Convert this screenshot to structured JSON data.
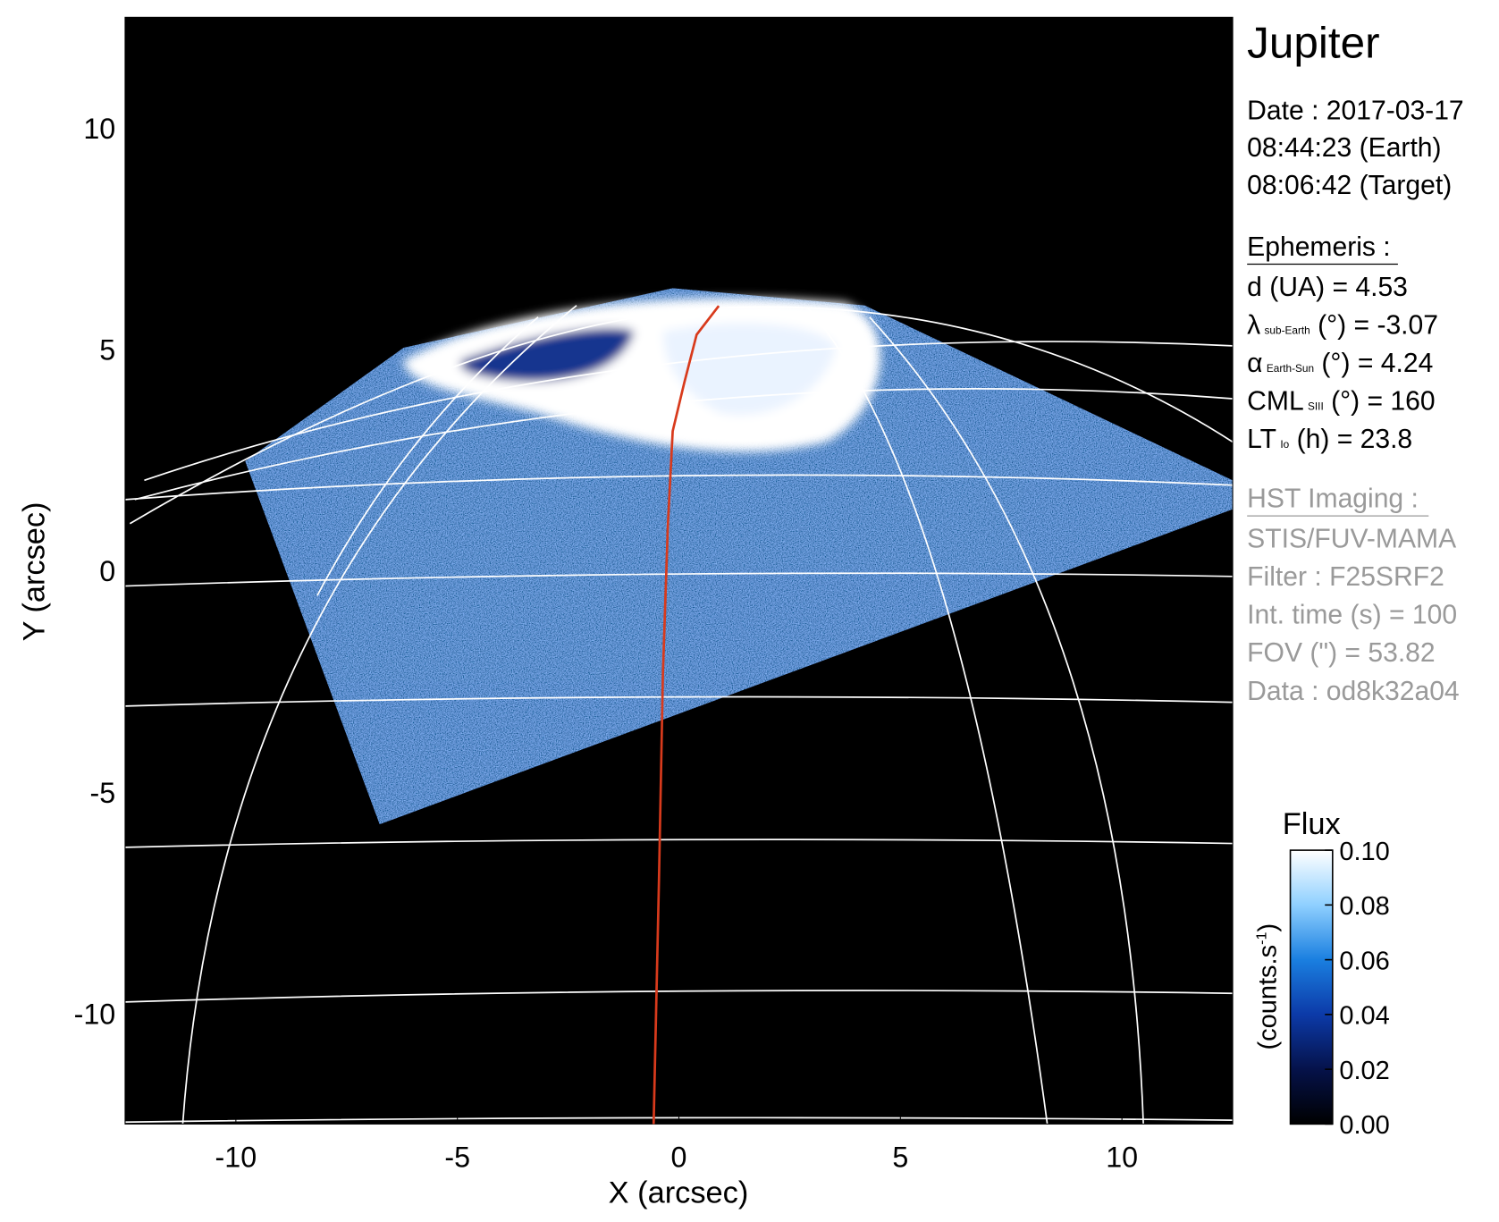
{
  "chart_data": {
    "type": "line",
    "title": "Jupiter",
    "x_label": "X (arcsec)",
    "y_label": "Y (arcsec)",
    "xlim": [
      -12.5,
      12.5
    ],
    "ylim": [
      -12.5,
      12.5
    ],
    "xticks": [
      -10,
      -5,
      0,
      5,
      10
    ],
    "yticks": [
      -10,
      -5,
      0,
      5,
      10
    ],
    "series": [
      {
        "color": "#d83a1c",
        "x": [
          -0.57,
          -0.45,
          -0.36,
          -0.25,
          -0.14,
          0.12,
          0.4,
          0.9
        ],
        "values": [
          -12.5,
          -7,
          -2.3,
          1,
          3.15,
          4.24,
          5.33,
          5.98
        ]
      }
    ],
    "date_lines": [
      "Date : 2017-03-17",
      "08:44:23 (Earth)",
      "08:06:42 (Target)"
    ],
    "ephemeris": {
      "heading": "Ephemeris :",
      "rows": [
        {
          "symbol": "d (UA)    = 4.53"
        },
        {
          "symbol": "λ",
          "sub": "sub-Earth",
          "text": " (°) = -3.07"
        },
        {
          "symbol": "α",
          "sub": "Earth-Sun",
          "text": " (°) = 4.24"
        },
        {
          "symbol": "CML",
          "sub": "SIII",
          "text": " (°) = 160"
        },
        {
          "symbol": "LT",
          "sub": "Io",
          "text": " (h) = 23.8"
        }
      ]
    },
    "imaging": {
      "heading": "HST Imaging :",
      "lines": [
        "STIS/FUV-MAMA",
        "Filter : F25SRF2",
        "Int. time (s) = 100",
        "FOV (\") = 53.82",
        "Data : od8k32a04"
      ]
    },
    "colorbar": {
      "title": "Flux",
      "label": "(counts.s",
      "label_sup": "-1",
      "label_end": ")",
      "lim": [
        0,
        0.1
      ],
      "ticks": [
        {
          "value": 0,
          "label": "0.00"
        },
        {
          "value": 0.02,
          "label": "0.02"
        },
        {
          "value": 0.04,
          "label": "0.04"
        },
        {
          "value": 0.06,
          "label": "0.06"
        },
        {
          "value": 0.08,
          "label": "0.08"
        },
        {
          "value": 0.1,
          "label": "0.10"
        }
      ],
      "colormap": [
        "#000000",
        "#05124a",
        "#0c3aa8",
        "#1a7fe0",
        "#8fd0ff",
        "#ffffff"
      ]
    }
  }
}
